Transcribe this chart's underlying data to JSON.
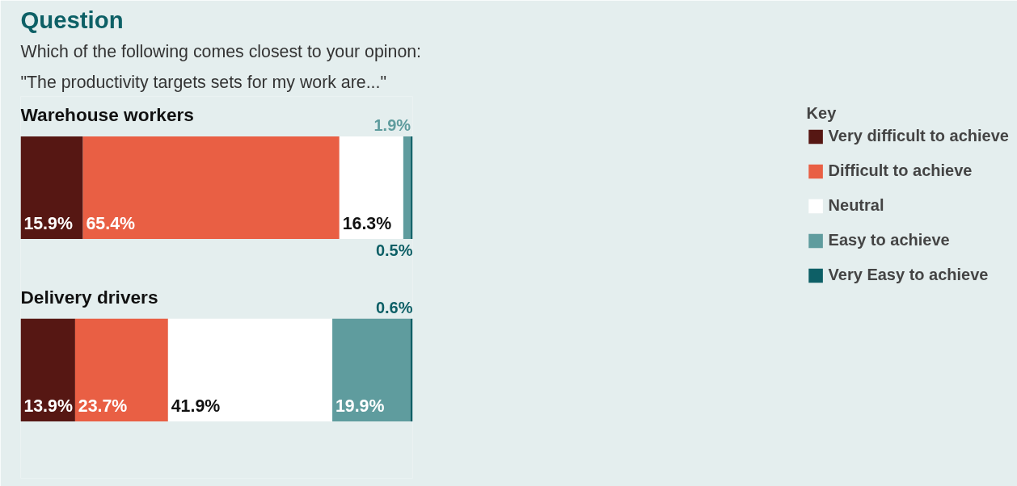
{
  "chart_data": {
    "type": "bar",
    "orientation": "horizontal",
    "stacked": true,
    "title": "Question",
    "subtitle": "Which of the following comes closest to your opinon:\n\"The productivity targets sets for my work are...\"",
    "legend_title": "Key",
    "legend": "right",
    "tick_labels": false,
    "categories": [
      "Warehouse workers",
      "Delivery drivers"
    ],
    "series": [
      {
        "name": "Very difficult to achieve",
        "color": "#561713",
        "values": [
          15.9,
          13.9
        ],
        "value_labels": [
          "15.9%",
          "13.9%"
        ]
      },
      {
        "name": "Difficult to achieve",
        "color": "#e95f44",
        "values": [
          65.4,
          23.7
        ],
        "value_labels": [
          "65.4%",
          "23.7%"
        ]
      },
      {
        "name": "Neutral",
        "color": "#ffffff",
        "values": [
          16.3,
          41.9
        ],
        "value_labels": [
          "16.3%",
          "41.9%"
        ]
      },
      {
        "name": "Easy to achieve",
        "color": "#5f9c9e",
        "values": [
          1.9,
          19.9
        ],
        "value_labels": [
          "1.9%",
          "19.9%"
        ]
      },
      {
        "name": "Very Easy to achieve",
        "color": "#0d5f66",
        "values": [
          0.5,
          0.6
        ],
        "value_labels": [
          "0.5%",
          "0.6%"
        ]
      }
    ]
  }
}
